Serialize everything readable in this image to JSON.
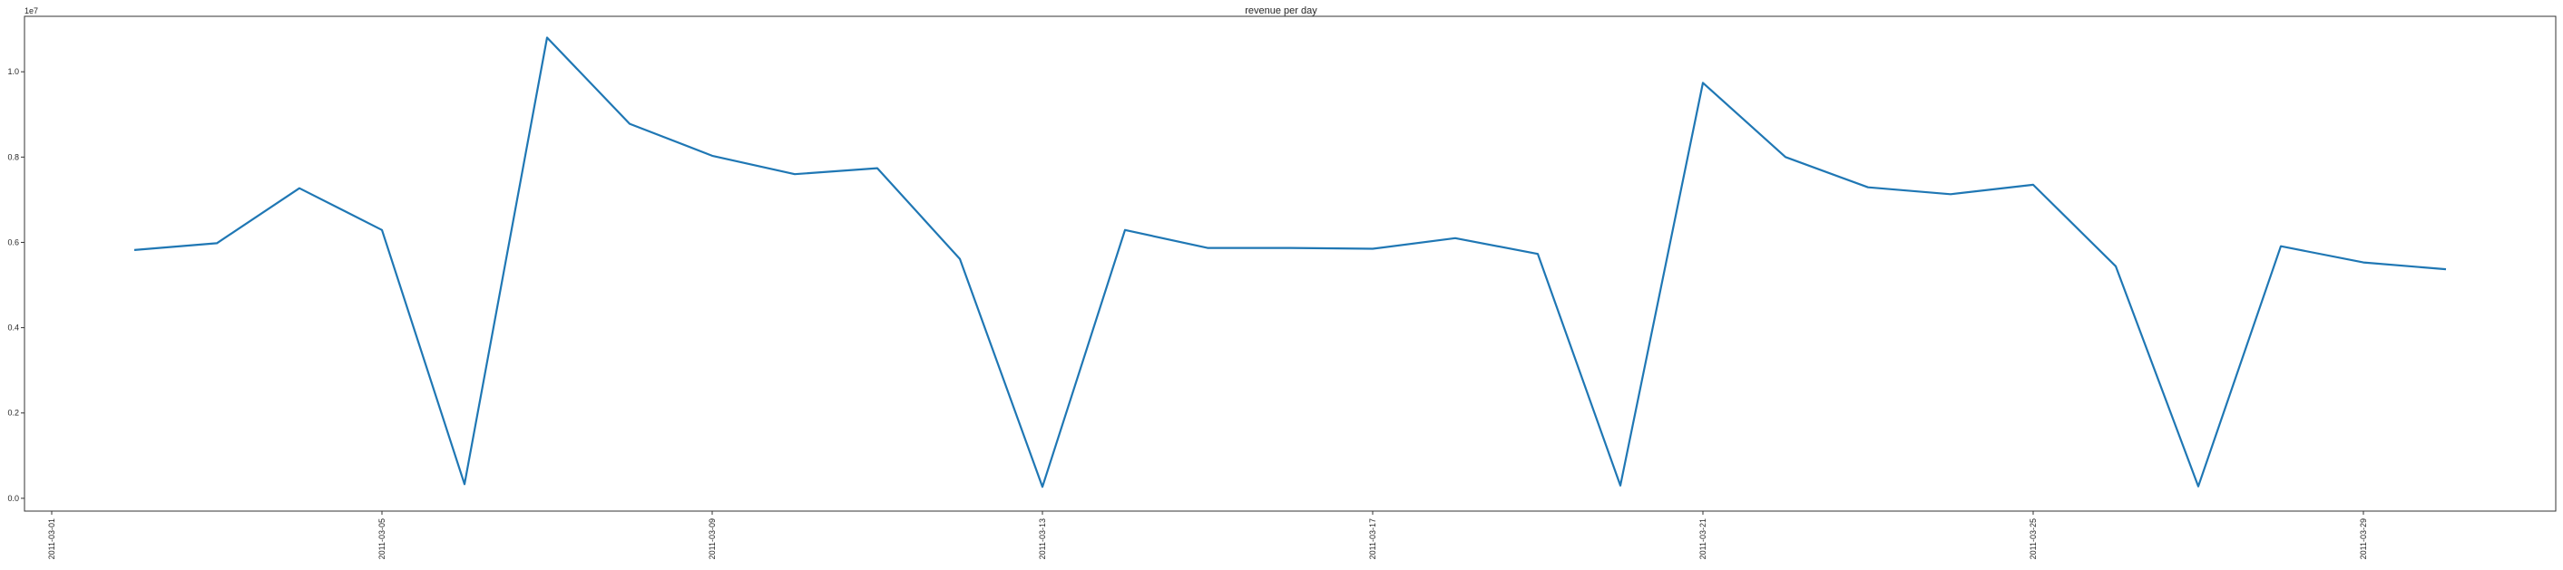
{
  "chart_data": {
    "type": "line",
    "title": "revenue per day",
    "xlabel": "",
    "ylabel": "",
    "y_offset_label": "1e7",
    "y_multiplier": 10000000,
    "grid": false,
    "line_color": "#1f77b4",
    "xlim": [
      "2011-03-01",
      "2011-03-31"
    ],
    "ylim": [
      -0.3,
      11.3
    ],
    "x_ticks": [
      "2011-03-01",
      "2011-03-05",
      "2011-03-09",
      "2011-03-13",
      "2011-03-17",
      "2011-03-21",
      "2011-03-25",
      "2011-03-29"
    ],
    "y_ticks": [
      "0.0",
      "0.2",
      "0.4",
      "0.6",
      "0.8",
      "1.0"
    ],
    "y_tick_values": [
      0,
      2,
      4,
      6,
      8,
      10
    ],
    "series": [
      {
        "x": [
          "2011-03-02",
          "2011-03-03",
          "2011-03-04",
          "2011-03-05",
          "2011-03-06",
          "2011-03-07",
          "2011-03-08",
          "2011-03-09",
          "2011-03-10",
          "2011-03-11",
          "2011-03-12",
          "2011-03-13",
          "2011-03-14",
          "2011-03-15",
          "2011-03-16",
          "2011-03-17",
          "2011-03-18",
          "2011-03-19",
          "2011-03-20",
          "2011-03-21",
          "2011-03-22",
          "2011-03-23",
          "2011-03-24",
          "2011-03-25",
          "2011-03-26",
          "2011-03-27",
          "2011-03-28",
          "2011-03-29",
          "2011-03-30"
        ],
        "values": [
          5.82,
          5.98,
          7.27,
          6.29,
          0.33,
          10.8,
          8.78,
          8.03,
          7.6,
          7.74,
          5.61,
          0.27,
          6.29,
          5.87,
          5.87,
          5.85,
          6.1,
          5.73,
          0.3,
          9.74,
          8.0,
          7.29,
          7.13,
          7.35,
          5.44,
          0.28,
          5.91,
          5.53,
          5.37
        ]
      }
    ]
  }
}
